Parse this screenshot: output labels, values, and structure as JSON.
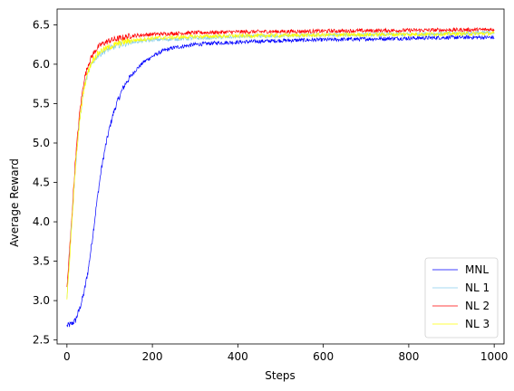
{
  "chart_data": {
    "type": "line",
    "title": "",
    "xlabel": "Steps",
    "ylabel": "Average Reward",
    "xlim": [
      -23,
      1023
    ],
    "ylim": [
      2.45,
      6.7
    ],
    "xticks": [
      0,
      200,
      400,
      600,
      800,
      1000
    ],
    "xtick_labels": [
      "0",
      "200",
      "400",
      "600",
      "800",
      "1000"
    ],
    "yticks": [
      2.5,
      3.0,
      3.5,
      4.0,
      4.5,
      5.0,
      5.5,
      6.0,
      6.5
    ],
    "ytick_labels": [
      "2.5",
      "3.0",
      "3.5",
      "4.0",
      "4.5",
      "5.0",
      "5.5",
      "6.0",
      "6.5"
    ],
    "grid": false,
    "legend_position": "lower-right",
    "series": [
      {
        "name": "MNL",
        "color": "#0000ff",
        "points": [
          [
            0,
            2.68
          ],
          [
            10,
            2.7
          ],
          [
            20,
            2.75
          ],
          [
            30,
            2.9
          ],
          [
            40,
            3.1
          ],
          [
            50,
            3.4
          ],
          [
            60,
            3.8
          ],
          [
            70,
            4.25
          ],
          [
            80,
            4.65
          ],
          [
            90,
            4.95
          ],
          [
            100,
            5.2
          ],
          [
            110,
            5.4
          ],
          [
            120,
            5.55
          ],
          [
            130,
            5.68
          ],
          [
            140,
            5.78
          ],
          [
            150,
            5.85
          ],
          [
            160,
            5.92
          ],
          [
            180,
            6.03
          ],
          [
            200,
            6.1
          ],
          [
            225,
            6.17
          ],
          [
            250,
            6.21
          ],
          [
            300,
            6.25
          ],
          [
            350,
            6.27
          ],
          [
            400,
            6.28
          ],
          [
            500,
            6.3
          ],
          [
            600,
            6.31
          ],
          [
            700,
            6.32
          ],
          [
            800,
            6.33
          ],
          [
            900,
            6.34
          ],
          [
            1000,
            6.34
          ]
        ]
      },
      {
        "name": "NL 1",
        "color": "#87ceeb",
        "points": [
          [
            0,
            3.05
          ],
          [
            10,
            3.9
          ],
          [
            20,
            4.7
          ],
          [
            30,
            5.3
          ],
          [
            40,
            5.7
          ],
          [
            50,
            5.9
          ],
          [
            60,
            6.02
          ],
          [
            70,
            6.1
          ],
          [
            80,
            6.14
          ],
          [
            100,
            6.2
          ],
          [
            125,
            6.25
          ],
          [
            150,
            6.28
          ],
          [
            200,
            6.31
          ],
          [
            300,
            6.33
          ],
          [
            400,
            6.35
          ],
          [
            600,
            6.37
          ],
          [
            800,
            6.38
          ],
          [
            1000,
            6.4
          ]
        ]
      },
      {
        "name": "NL 2",
        "color": "#ff0000",
        "points": [
          [
            0,
            3.15
          ],
          [
            10,
            3.95
          ],
          [
            20,
            4.8
          ],
          [
            30,
            5.4
          ],
          [
            40,
            5.8
          ],
          [
            50,
            6.0
          ],
          [
            60,
            6.12
          ],
          [
            70,
            6.2
          ],
          [
            80,
            6.25
          ],
          [
            100,
            6.3
          ],
          [
            125,
            6.33
          ],
          [
            150,
            6.36
          ],
          [
            200,
            6.38
          ],
          [
            300,
            6.4
          ],
          [
            400,
            6.41
          ],
          [
            600,
            6.42
          ],
          [
            800,
            6.43
          ],
          [
            1000,
            6.44
          ]
        ]
      },
      {
        "name": "NL 3",
        "color": "#ffff00",
        "points": [
          [
            0,
            3.0
          ],
          [
            10,
            3.85
          ],
          [
            20,
            4.7
          ],
          [
            30,
            5.3
          ],
          [
            40,
            5.7
          ],
          [
            50,
            5.92
          ],
          [
            60,
            6.05
          ],
          [
            70,
            6.12
          ],
          [
            80,
            6.17
          ],
          [
            100,
            6.22
          ],
          [
            125,
            6.27
          ],
          [
            150,
            6.3
          ],
          [
            200,
            6.33
          ],
          [
            300,
            6.35
          ],
          [
            400,
            6.36
          ],
          [
            600,
            6.37
          ],
          [
            800,
            6.38
          ],
          [
            1000,
            6.39
          ]
        ]
      }
    ]
  }
}
